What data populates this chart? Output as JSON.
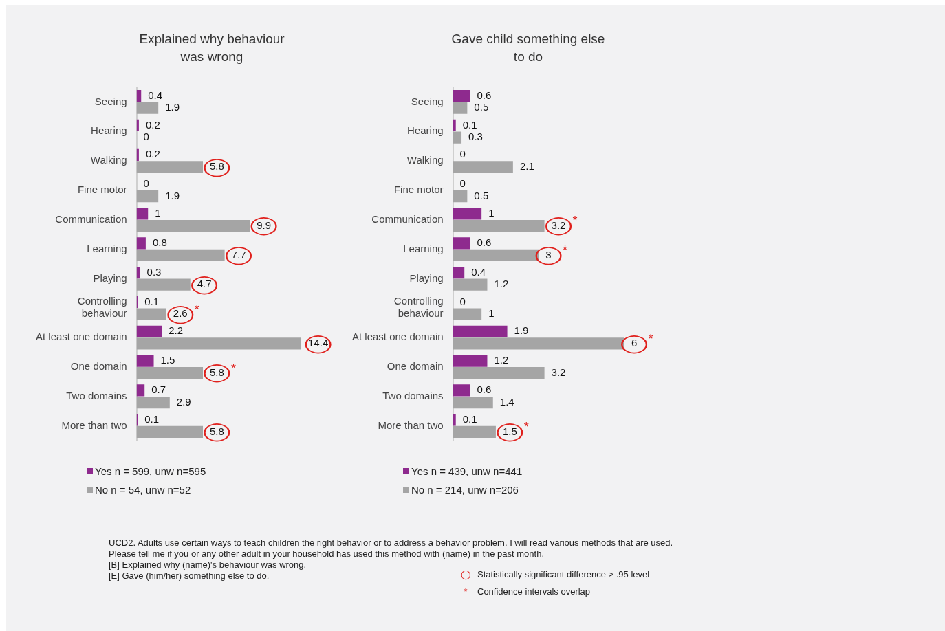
{
  "chart_data": [
    {
      "type": "bar",
      "orientation": "horizontal",
      "title": "Explained why behaviour was wrong",
      "categories": [
        "Seeing",
        "Hearing",
        "Walking",
        "Fine motor",
        "Communication",
        "Learning",
        "Playing",
        "Controlling behaviour",
        "At least one domain",
        "One domain",
        "Two domains",
        "More than two"
      ],
      "series": [
        {
          "name": "Yes n = 599, unw n=595",
          "color": "#8e2a8e",
          "values": [
            0.4,
            0.2,
            0.2,
            0,
            1,
            0.8,
            0.3,
            0.1,
            2.2,
            1.5,
            0.7,
            0.1
          ]
        },
        {
          "name": "No n = 54, unw n=52",
          "color": "#a5a5a5",
          "values": [
            1.9,
            0,
            5.8,
            1.9,
            9.9,
            7.7,
            4.7,
            2.6,
            14.4,
            5.8,
            2.9,
            5.8
          ]
        }
      ],
      "data_labels": true,
      "legend": "bottom",
      "annotations": [
        {
          "text": "◯",
          "x": 5.8,
          "y": "Walking"
        },
        {
          "text": "◯",
          "x": 9.9,
          "y": "Communication"
        },
        {
          "text": "◯",
          "x": 7.7,
          "y": "Learning"
        },
        {
          "text": "◯",
          "x": 4.7,
          "y": "Playing"
        },
        {
          "text": "◯",
          "x": 2.6,
          "y": "Controlling behaviour"
        },
        {
          "text": "*",
          "x": 2.6,
          "y": "Controlling behaviour"
        },
        {
          "text": "◯",
          "x": 14.4,
          "y": "At least one domain"
        },
        {
          "text": "◯",
          "x": 5.8,
          "y": "One domain"
        },
        {
          "text": "*",
          "x": 5.8,
          "y": "One domain"
        },
        {
          "text": "◯",
          "x": 5.8,
          "y": "More than two"
        },
        "UCD2. Adults use certain ways to teach children the right behavior or to address a behavior problem. I will read various methods that are used.",
        "Please tell me if you or any other adult in your household has used this method with (name) in the past month.",
        "[B] Explained why (name)'s behaviour was wrong.",
        "[E] Gave (him/her) something else to do."
      ]
    },
    {
      "type": "bar",
      "orientation": "horizontal",
      "title": "Gave child something else to do",
      "categories": [
        "Seeing",
        "Hearing",
        "Walking",
        "Fine motor",
        "Communication",
        "Learning",
        "Playing",
        "Controlling behaviour",
        "At least one domain",
        "One domain",
        "Two domains",
        "More than two"
      ],
      "series": [
        {
          "name": "Yes n = 439, unw n=441",
          "color": "#8e2a8e",
          "values": [
            0.6,
            0.1,
            0,
            0,
            1,
            0.6,
            0.4,
            0,
            1.9,
            1.2,
            0.6,
            0.1
          ]
        },
        {
          "name": "No n = 214, unw n=206",
          "color": "#a5a5a5",
          "values": [
            0.5,
            0.3,
            2.1,
            0.5,
            3.2,
            3,
            1.2,
            1,
            6,
            3.2,
            1.4,
            1.5
          ]
        }
      ],
      "data_labels": true,
      "legend": "bottom",
      "annotations": [
        {
          "text": "◯",
          "x": 3.2,
          "y": "Communication"
        },
        {
          "text": "*",
          "x": 3.2,
          "y": "Communication"
        },
        {
          "text": "◯",
          "x": 3,
          "y": "Learning"
        },
        {
          "text": "*",
          "x": 3,
          "y": "Learning"
        },
        {
          "text": "◯",
          "x": 6,
          "y": "At least one domain"
        },
        {
          "text": "*",
          "x": 6,
          "y": "At least one domain"
        },
        {
          "text": "◯",
          "x": 1.5,
          "y": "More than two"
        },
        {
          "text": "*",
          "x": 1.5,
          "y": "More than two"
        },
        "◯ Statistically significant difference > .95 level",
        "* Confidence intervals overlap"
      ]
    }
  ]
}
